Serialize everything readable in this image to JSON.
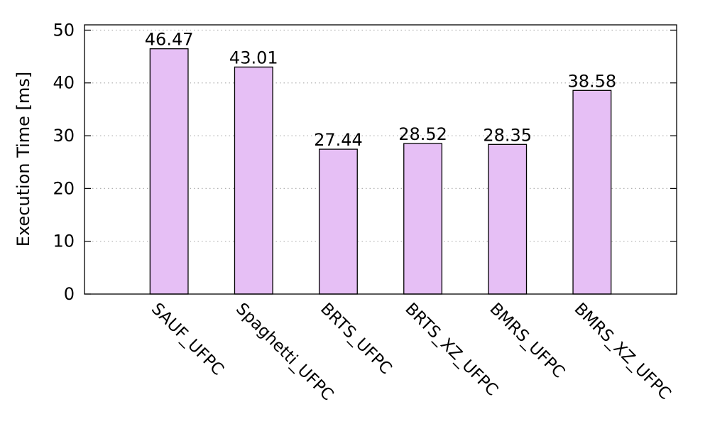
{
  "chart_data": {
    "type": "bar",
    "title": "",
    "xlabel": "",
    "ylabel": "Execution Time [ms]",
    "categories": [
      "SAUF_UFPC",
      "Spaghetti_UFPC",
      "BRTS_UFPC",
      "BRTS_XZ_UFPC",
      "BMRS_UFPC",
      "BMRS_XZ_UFPC"
    ],
    "values": [
      46.47,
      43.01,
      27.44,
      28.52,
      28.35,
      38.58
    ],
    "value_labels": [
      "46.47",
      "43.01",
      "27.44",
      "28.52",
      "28.35",
      "38.58"
    ],
    "ylim": [
      0,
      51
    ],
    "yticks": [
      0,
      10,
      20,
      30,
      40,
      50
    ],
    "grid": "horizontal dotted",
    "legend": "none",
    "colors": {
      "bar_fill": "#e6bff5",
      "bar_stroke": "#000000",
      "grid": "#b0b0b0",
      "axis": "#000000"
    }
  }
}
